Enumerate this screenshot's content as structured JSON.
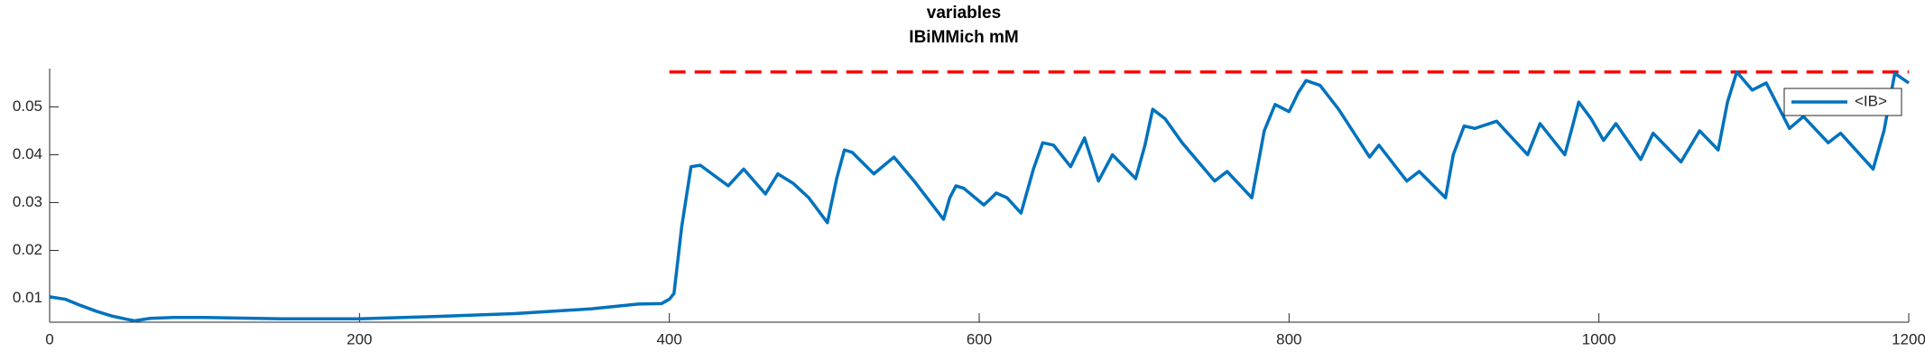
{
  "chart_data": {
    "type": "line",
    "title": "variables",
    "subtitle": "IBiMMich mM",
    "x": [
      0,
      10,
      20,
      30,
      40,
      50,
      55,
      65,
      80,
      100,
      150,
      200,
      250,
      300,
      350,
      380,
      395,
      400,
      403,
      408,
      414,
      420,
      438,
      448,
      462,
      470,
      480,
      490,
      502,
      508,
      513,
      518,
      532,
      545,
      558,
      577,
      581,
      585,
      590,
      603,
      608,
      611,
      618,
      627,
      635,
      641,
      648,
      659,
      668,
      677,
      686,
      701,
      707,
      712,
      720,
      731,
      752,
      760,
      776,
      784,
      791,
      800,
      806,
      811,
      820,
      832,
      852,
      858,
      876,
      884,
      901,
      906,
      913,
      920,
      934,
      954,
      962,
      978,
      983,
      987,
      995,
      1003,
      1011,
      1027,
      1035,
      1053,
      1065,
      1077,
      1083,
      1089,
      1099,
      1108,
      1123,
      1132,
      1148,
      1156,
      1177,
      1184,
      1191,
      1200
    ],
    "series": [
      {
        "name": "<IB>",
        "color": "#0072bd",
        "values": [
          0.0103,
          0.0098,
          0.0085,
          0.0073,
          0.0063,
          0.0056,
          0.0053,
          0.0058,
          0.006,
          0.006,
          0.0057,
          0.0057,
          0.0062,
          0.0068,
          0.0078,
          0.0088,
          0.0089,
          0.0098,
          0.011,
          0.025,
          0.0375,
          0.0378,
          0.0335,
          0.037,
          0.0318,
          0.036,
          0.034,
          0.031,
          0.0258,
          0.035,
          0.041,
          0.0405,
          0.036,
          0.0395,
          0.0345,
          0.0265,
          0.031,
          0.0335,
          0.033,
          0.0295,
          0.031,
          0.032,
          0.031,
          0.0278,
          0.037,
          0.0425,
          0.042,
          0.0375,
          0.0435,
          0.0345,
          0.04,
          0.035,
          0.042,
          0.0495,
          0.0475,
          0.0425,
          0.0345,
          0.0365,
          0.031,
          0.045,
          0.0505,
          0.049,
          0.053,
          0.0555,
          0.0545,
          0.0495,
          0.0395,
          0.042,
          0.0345,
          0.0365,
          0.031,
          0.04,
          0.046,
          0.0455,
          0.047,
          0.04,
          0.0465,
          0.04,
          0.046,
          0.051,
          0.0475,
          0.043,
          0.0465,
          0.039,
          0.0445,
          0.0385,
          0.045,
          0.041,
          0.051,
          0.0573,
          0.0535,
          0.055,
          0.0455,
          0.048,
          0.0425,
          0.0445,
          0.037,
          0.045,
          0.057,
          0.055
        ]
      }
    ],
    "hline": {
      "value": 0.0573,
      "xstart": 400,
      "xend": 1200,
      "color": "#ff0000"
    },
    "xlim": [
      0,
      1200
    ],
    "xticks": [
      0,
      200,
      400,
      600,
      800,
      1000,
      1200
    ],
    "ylim": [
      0.005,
      0.058
    ],
    "yticks": [
      0.01,
      0.02,
      0.03,
      0.04,
      0.05
    ],
    "legend": "upper right"
  }
}
